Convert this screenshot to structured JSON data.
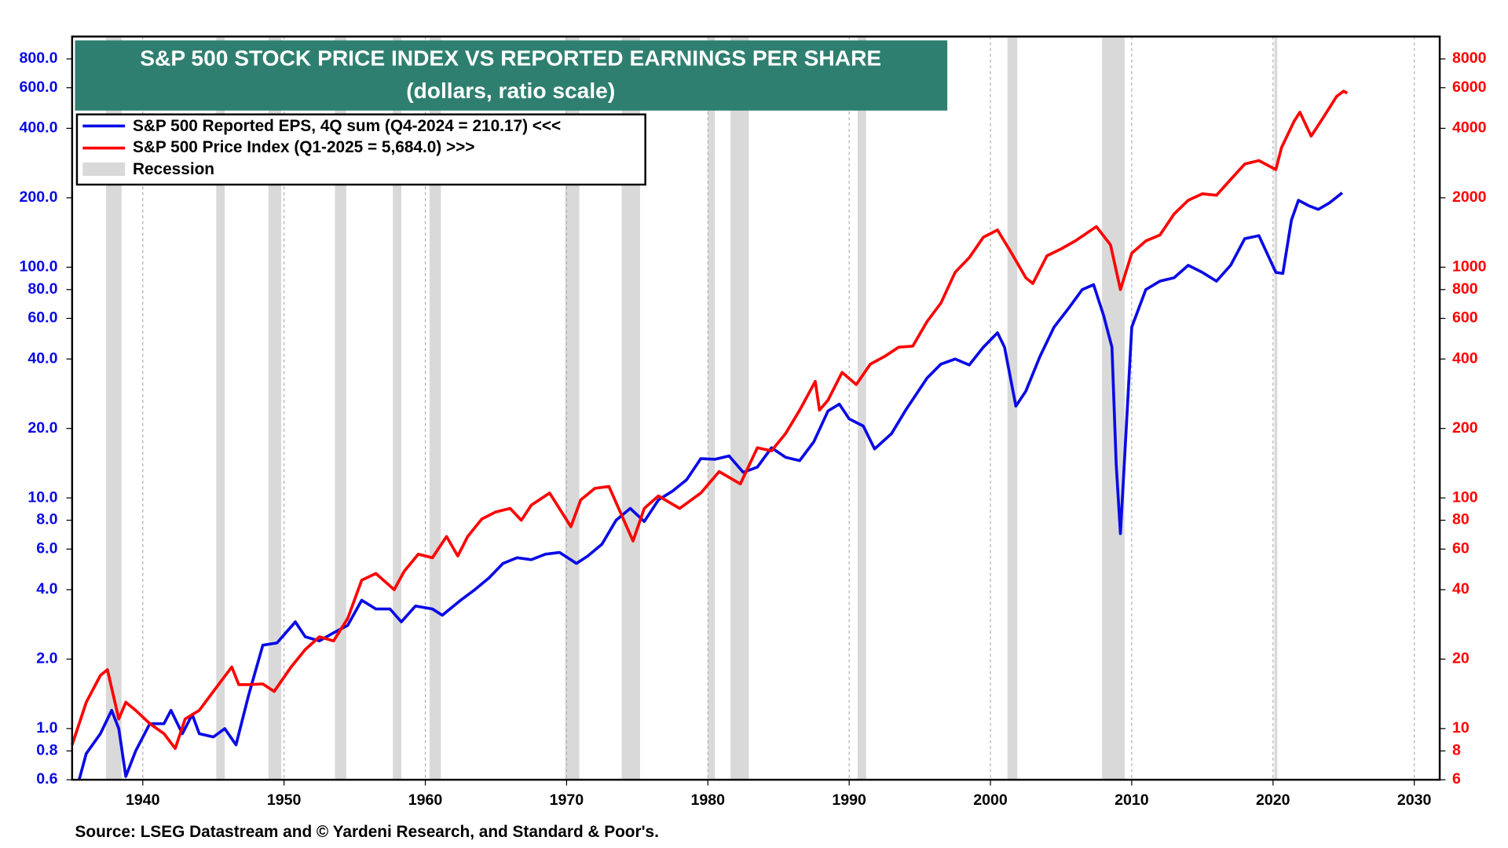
{
  "chart_data": {
    "type": "line",
    "title": "S&P 500 STOCK PRICE INDEX VS REPORTED EARNINGS PER SHARE",
    "subtitle": "(dollars, ratio scale)",
    "source": "Source: LSEG Datastream and © Yardeni Research, and Standard & Poor's.",
    "log_scale": true,
    "grid": "vertical",
    "legend": "upper left",
    "xlim": [
      1935,
      2031.8
    ],
    "xticks": [
      1940,
      1950,
      1960,
      1970,
      1980,
      1990,
      2000,
      2010,
      2020,
      2030
    ],
    "ylim": [
      0.6,
      1000
    ],
    "yticks": [
      {
        "value": 0.6,
        "label": "0.6"
      },
      {
        "value": 0.8,
        "label": "0.8"
      },
      {
        "value": 1,
        "label": "1.0"
      },
      {
        "value": 2,
        "label": "2.0"
      },
      {
        "value": 4,
        "label": "4.0"
      },
      {
        "value": 6,
        "label": "6.0"
      },
      {
        "value": 8,
        "label": "8.0"
      },
      {
        "value": 10,
        "label": "10.0"
      },
      {
        "value": 20,
        "label": "20.0"
      },
      {
        "value": 40,
        "label": "40.0"
      },
      {
        "value": 60,
        "label": "60.0"
      },
      {
        "value": 80,
        "label": "80.0"
      },
      {
        "value": 100,
        "label": "100.0"
      },
      {
        "value": 200,
        "label": "200.0"
      },
      {
        "value": 400,
        "label": "400.0"
      },
      {
        "value": 600,
        "label": "600.0"
      },
      {
        "value": 800,
        "label": "800.0"
      }
    ],
    "y2lim": [
      6,
      10000
    ],
    "y2ticks": [
      6,
      8,
      10,
      20,
      40,
      60,
      80,
      100,
      200,
      400,
      600,
      800,
      1000,
      2000,
      4000,
      6000,
      8000
    ],
    "recession": {
      "name": "Recession",
      "color": "#d9d9d9",
      "periods": [
        [
          1937.4,
          1938.5
        ],
        [
          1945.2,
          1945.8
        ],
        [
          1948.9,
          1949.8
        ],
        [
          1953.6,
          1954.4
        ],
        [
          1957.7,
          1958.3
        ],
        [
          1960.3,
          1961.1
        ],
        [
          1969.9,
          1970.9
        ],
        [
          1973.9,
          1975.2
        ],
        [
          1980.0,
          1980.5
        ],
        [
          1981.6,
          1982.9
        ],
        [
          1990.6,
          1991.2
        ],
        [
          2001.2,
          2001.9
        ],
        [
          2007.9,
          2009.5
        ],
        [
          2020.1,
          2020.3
        ]
      ]
    },
    "series": [
      {
        "name": "S&P 500 Reported EPS, 4Q sum (Q4-2024 = 210.17) <<<",
        "color": "#0a0ae6",
        "axis": "y",
        "x": [
          1935.5,
          1936,
          1937,
          1937.8,
          1938.3,
          1938.8,
          1939.5,
          1940.5,
          1941.5,
          1942,
          1942.8,
          1943.5,
          1944,
          1945,
          1945.8,
          1946.6,
          1947.5,
          1948.5,
          1949.5,
          1950.8,
          1951.5,
          1952.5,
          1953.5,
          1954.5,
          1955.5,
          1956.5,
          1957.5,
          1958.3,
          1959.3,
          1960.5,
          1961.2,
          1962.5,
          1963.5,
          1964.5,
          1965.5,
          1966.5,
          1967.5,
          1968.5,
          1969.5,
          1970.7,
          1971.5,
          1972.5,
          1973.5,
          1974.5,
          1975.5,
          1976.5,
          1977.5,
          1978.5,
          1979.5,
          1980.5,
          1981.5,
          1982.5,
          1983.5,
          1984.5,
          1985.5,
          1986.5,
          1987.5,
          1988.5,
          1989.3,
          1990,
          1991,
          1991.8,
          1993,
          1994,
          1995.5,
          1996.5,
          1997.5,
          1998.5,
          1999.5,
          2000.5,
          2001,
          2001.8,
          2002.5,
          2003.5,
          2004.5,
          2005.5,
          2006.5,
          2007.3,
          2008,
          2008.6,
          2008.9,
          2009.2,
          2009.5,
          2010,
          2011,
          2012,
          2013,
          2014,
          2015,
          2016,
          2017,
          2018,
          2019,
          2020.2,
          2020.7,
          2021.3,
          2021.8,
          2022.5,
          2023.2,
          2024,
          2024.9
        ],
        "values": [
          0.6,
          0.78,
          0.95,
          1.2,
          1.0,
          0.62,
          0.8,
          1.05,
          1.05,
          1.2,
          0.95,
          1.15,
          0.95,
          0.92,
          1.0,
          0.85,
          1.4,
          2.3,
          2.35,
          2.9,
          2.5,
          2.4,
          2.6,
          2.8,
          3.6,
          3.3,
          3.3,
          2.9,
          3.4,
          3.3,
          3.1,
          3.6,
          4.0,
          4.5,
          5.2,
          5.5,
          5.4,
          5.7,
          5.8,
          5.2,
          5.6,
          6.3,
          8.0,
          9.0,
          7.9,
          9.8,
          10.7,
          12.0,
          14.8,
          14.7,
          15.2,
          12.9,
          13.6,
          16.5,
          15.0,
          14.5,
          17.5,
          23.8,
          25.5,
          22,
          20.5,
          16.3,
          19.0,
          24,
          33,
          38,
          40,
          37.7,
          45,
          52,
          45,
          25,
          29,
          41,
          55,
          66,
          80,
          84,
          62,
          45,
          14,
          7,
          15,
          55,
          80,
          87,
          90,
          102,
          95,
          87,
          102,
          133,
          137,
          95,
          94,
          160,
          195,
          185,
          178,
          190,
          210.17
        ]
      },
      {
        "name": "S&P 500 Price Index (Q1-2025 = 5,684.0) >>>",
        "color": "#ff0000",
        "axis": "y2",
        "x": [
          1935,
          1936,
          1937,
          1937.5,
          1938.3,
          1938.8,
          1939.5,
          1940.5,
          1941.5,
          1942.3,
          1943,
          1944,
          1945,
          1946.3,
          1946.8,
          1947.5,
          1948.5,
          1949.3,
          1950.5,
          1951.5,
          1952.5,
          1953.5,
          1954.5,
          1955.5,
          1956.5,
          1957.8,
          1958.5,
          1959.5,
          1960.5,
          1961.5,
          1962.3,
          1963,
          1964,
          1965,
          1966,
          1966.8,
          1967.5,
          1968.8,
          1970.3,
          1971,
          1972,
          1973,
          1974.7,
          1975.5,
          1976.5,
          1978,
          1979.5,
          1980.8,
          1982.3,
          1983.5,
          1984.5,
          1985.5,
          1986.5,
          1987.6,
          1987.9,
          1988.5,
          1989.5,
          1990.5,
          1991.5,
          1992.5,
          1993.5,
          1994.5,
          1995.5,
          1996.5,
          1997.5,
          1998.5,
          1999.5,
          2000.5,
          2001.5,
          2002.5,
          2003,
          2004,
          2005,
          2006,
          2007.5,
          2008.5,
          2009.2,
          2010,
          2011,
          2012,
          2013,
          2014,
          2015,
          2016,
          2017,
          2018,
          2019,
          2020.2,
          2020.6,
          2021.5,
          2021.9,
          2022.7,
          2023.5,
          2024.5,
          2025,
          2025.25
        ],
        "values": [
          8.5,
          13,
          17,
          18,
          11,
          13,
          12,
          10.5,
          9.5,
          8.2,
          11,
          12,
          14.5,
          18.5,
          15.5,
          15.5,
          15.6,
          14.5,
          18.5,
          22,
          25,
          24,
          30,
          44,
          47,
          40,
          48,
          57,
          55,
          68,
          56,
          68,
          81,
          87,
          90,
          80,
          93,
          105,
          75,
          98,
          110,
          112,
          65,
          90,
          102,
          90,
          105,
          130,
          115,
          165,
          160,
          190,
          240,
          320,
          240,
          265,
          350,
          310,
          380,
          410,
          450,
          455,
          580,
          700,
          950,
          1100,
          1350,
          1450,
          1150,
          900,
          850,
          1120,
          1200,
          1300,
          1500,
          1250,
          800,
          1150,
          1300,
          1380,
          1700,
          1950,
          2080,
          2050,
          2400,
          2800,
          2900,
          2650,
          3300,
          4300,
          4700,
          3700,
          4400,
          5500,
          5800,
          5684
        ]
      }
    ]
  }
}
